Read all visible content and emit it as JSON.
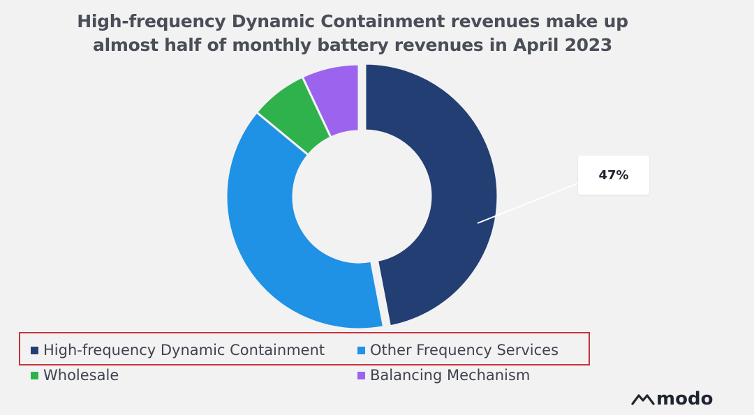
{
  "title_lines": [
    "High-frequency Dynamic Containment revenues make up",
    "almost half of monthly battery revenues in April 2023"
  ],
  "chart_data": {
    "type": "pie",
    "donut": true,
    "title": "High-frequency Dynamic Containment revenues make up almost half of monthly battery revenues in April 2023",
    "labels": [
      "High-frequency Dynamic Containment",
      "Other Frequency Services",
      "Wholesale",
      "Balancing Mechanism"
    ],
    "values": [
      47,
      39,
      7,
      7
    ],
    "colors": [
      "#233e72",
      "#1f92e6",
      "#2fb24c",
      "#9b63ee"
    ],
    "annotations": [
      {
        "label": "High-frequency Dynamic Containment",
        "text": "47%"
      }
    ],
    "legend_position": "bottom"
  },
  "legend": {
    "items": [
      {
        "label": "High-frequency Dynamic Containment",
        "color": "#233e72"
      },
      {
        "label": "Other Frequency Services",
        "color": "#1f92e6"
      },
      {
        "label": "Wholesale",
        "color": "#2fb24c"
      },
      {
        "label": "Balancing Mechanism",
        "color": "#9b63ee"
      }
    ]
  },
  "callout_text": "47%",
  "logo_text": "modo",
  "logo_icon": "modo-mountain-icon",
  "highlight_color": "#c8323a"
}
